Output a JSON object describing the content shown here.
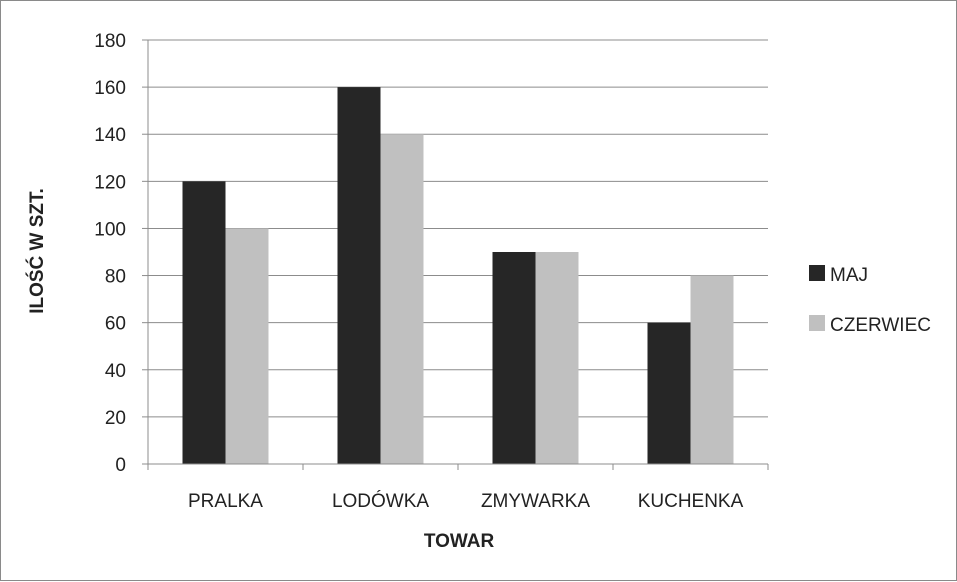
{
  "chart_data": {
    "type": "bar",
    "title": "",
    "xlabel": "TOWAR",
    "ylabel": "ILOŚĆ W SZT.",
    "categories": [
      "PRALKA",
      "LODÓWKA",
      "ZMYWARKA",
      "KUCHENKA"
    ],
    "series": [
      {
        "name": "MAJ",
        "values": [
          120,
          160,
          90,
          60
        ],
        "color": "#262626"
      },
      {
        "name": "CZERWIEC",
        "values": [
          100,
          140,
          90,
          80
        ],
        "color": "#c0c0c0"
      }
    ],
    "ylim": [
      0,
      180
    ],
    "yticks": [
      0,
      20,
      40,
      60,
      80,
      100,
      120,
      140,
      160,
      180
    ],
    "grid": true,
    "legend_position": "right"
  }
}
